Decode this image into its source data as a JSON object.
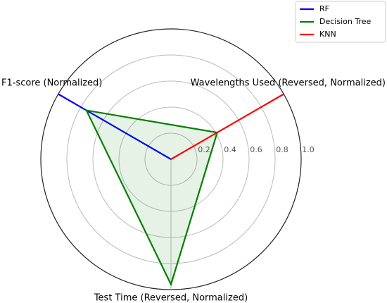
{
  "chart_data": {
    "type": "radar",
    "categories": [
      "Wavelengths Used (Reversed, Normalized)",
      "F1-score (Normalized)",
      "Test Time (Reversed, Normalized)"
    ],
    "series": [
      {
        "name": "RF",
        "color": "#0000ff",
        "values": [
          0,
          1.0,
          0
        ]
      },
      {
        "name": "Decision Tree",
        "color": "#008000",
        "values": [
          0.41,
          0.75,
          0.96
        ],
        "fill": true
      },
      {
        "name": "KNN",
        "color": "#ff0000",
        "values": [
          1.0,
          0,
          0
        ]
      }
    ],
    "ylim": [
      0,
      1
    ],
    "yticks": [
      0.2,
      0.4,
      0.6,
      0.8,
      {
        "value": 1,
        "label": "1.0"
      }
    ],
    "grid": true,
    "legend": "upper right"
  }
}
